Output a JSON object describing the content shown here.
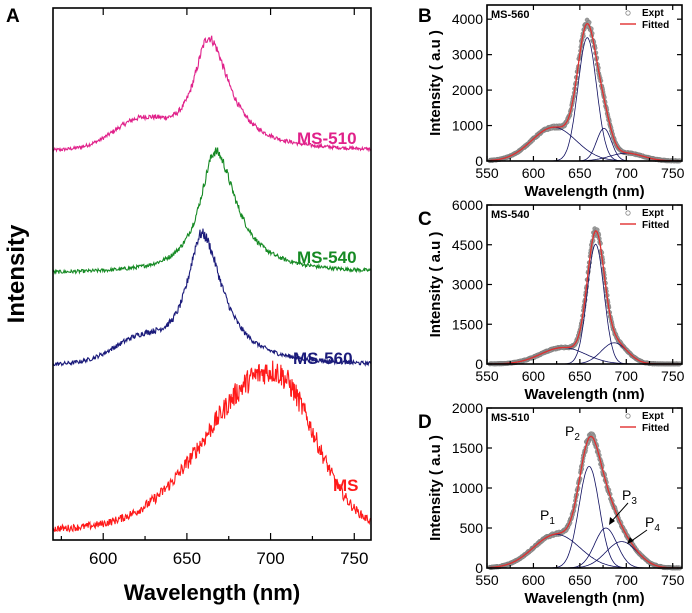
{
  "chart_data": [
    {
      "id": "A",
      "panel_label": "A",
      "type": "line",
      "title": "",
      "xlabel": "Wavelength (nm)",
      "ylabel": "Intensity",
      "xlim": [
        570,
        760
      ],
      "xticks": [
        600,
        650,
        700,
        750
      ],
      "grid": false,
      "series": [
        {
          "name": "MS-510",
          "color": "#e0218a",
          "peak": 663,
          "offset": 0.72,
          "height": 0.25,
          "shoulder_height": 0.05
        },
        {
          "name": "MS-540",
          "color": "#168a24",
          "peak": 667,
          "offset": 0.49,
          "height": 0.27,
          "shoulder_height": 0.0
        },
        {
          "name": "MS-560",
          "color": "#1a1a7a",
          "peak": 659,
          "offset": 0.315,
          "height": 0.29,
          "shoulder_height": 0.04
        },
        {
          "name": "MS",
          "color": "#ff1a1a",
          "peak": 702,
          "offset": 0.02,
          "height": 0.31,
          "shoulder_height": 0.0
        }
      ]
    },
    {
      "id": "B",
      "panel_label": "B",
      "type": "line",
      "tag": "MS-560",
      "xlabel": "Wavelength (nm)",
      "ylabel": "Intensity ( a.u )",
      "xlim": [
        550,
        760
      ],
      "ylim": [
        0,
        4400
      ],
      "xticks": [
        550,
        600,
        650,
        700,
        750
      ],
      "yticks": [
        0,
        1000,
        2000,
        3000,
        4000
      ],
      "legend": [
        "Expt",
        "Fitted"
      ],
      "legend_position": "top-right",
      "components": [
        {
          "center": 622,
          "amplitude": 950,
          "width": 24
        },
        {
          "center": 658,
          "amplitude": 3480,
          "width": 10
        },
        {
          "center": 676,
          "amplitude": 920,
          "width": 8
        },
        {
          "center": 700,
          "amplitude": 220,
          "width": 18
        }
      ]
    },
    {
      "id": "C",
      "panel_label": "C",
      "type": "line",
      "tag": "MS-540",
      "xlabel": "Wavelength (nm)",
      "ylabel": "Intensity ( a.u )",
      "xlim": [
        550,
        760
      ],
      "ylim": [
        0,
        6000
      ],
      "xticks": [
        550,
        600,
        650,
        700,
        750
      ],
      "yticks": [
        0,
        1500,
        3000,
        4500,
        6000
      ],
      "legend": [
        "Expt",
        "Fitted"
      ],
      "legend_position": "top-right",
      "components": [
        {
          "center": 632,
          "amplitude": 620,
          "width": 24
        },
        {
          "center": 667,
          "amplitude": 4520,
          "width": 9
        },
        {
          "center": 687,
          "amplitude": 800,
          "width": 14
        }
      ]
    },
    {
      "id": "D",
      "panel_label": "D",
      "type": "line",
      "tag": "MS-510",
      "xlabel": "Wavelength (nm)",
      "ylabel": "Intensity ( a.u )",
      "xlim": [
        550,
        760
      ],
      "ylim": [
        0,
        2000
      ],
      "xticks": [
        550,
        600,
        650,
        700,
        750
      ],
      "yticks": [
        0,
        500,
        1000,
        1500,
        2000
      ],
      "legend": [
        "Expt",
        "Fitted"
      ],
      "legend_position": "top-right",
      "components": [
        {
          "center": 625,
          "amplitude": 420,
          "width": 25
        },
        {
          "center": 660,
          "amplitude": 1270,
          "width": 11
        },
        {
          "center": 678,
          "amplitude": 500,
          "width": 12
        },
        {
          "center": 695,
          "amplitude": 330,
          "width": 17
        }
      ],
      "peak_labels": [
        {
          "main": "P",
          "sub": "1"
        },
        {
          "main": "P",
          "sub": "2"
        },
        {
          "main": "P",
          "sub": "3"
        },
        {
          "main": "P",
          "sub": "4"
        }
      ]
    }
  ]
}
